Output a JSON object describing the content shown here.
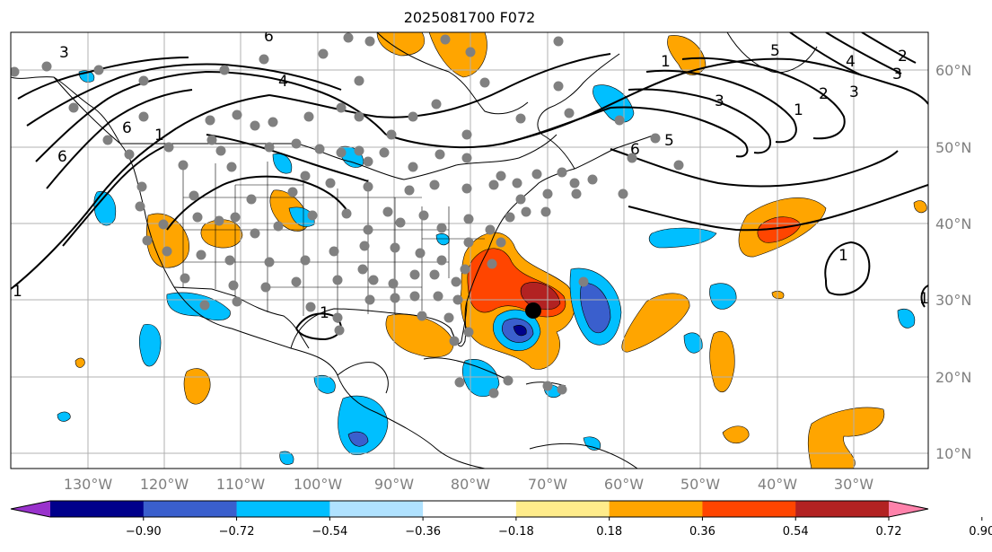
{
  "title": "2025081700 F072",
  "lat_labels": [
    "60°N",
    "50°N",
    "40°N",
    "30°N",
    "20°N",
    "10°N"
  ],
  "lon_labels": [
    "130°W",
    "120°W",
    "110°W",
    "100°W",
    "90°W",
    "80°W",
    "70°W",
    "60°W",
    "50°W",
    "40°W",
    "30°W"
  ],
  "colorbar": {
    "colors": [
      "#9932cc",
      "#00008b",
      "#3a5fcd",
      "#00bfff",
      "#b0e2ff",
      "#ffffff",
      "#ffec8b",
      "#ffa500",
      "#ff4500",
      "#b22222",
      "#ff82ab"
    ],
    "tick_labels": [
      "−0.90",
      "−0.72",
      "−0.54",
      "−0.36",
      "−0.18",
      "0.18",
      "0.36",
      "0.54",
      "0.72",
      "0.90"
    ]
  },
  "contour_labels": [
    "3",
    "6",
    "6",
    "4",
    "1",
    "6",
    "1",
    "5",
    "1",
    "3",
    "5",
    "4",
    "6",
    "2",
    "3",
    "2",
    "3",
    "1",
    "1",
    "1",
    "1"
  ],
  "colors": {
    "gridline": "#b0b0b0",
    "station_dot": "#808080",
    "storm_marker": "#000000"
  }
}
